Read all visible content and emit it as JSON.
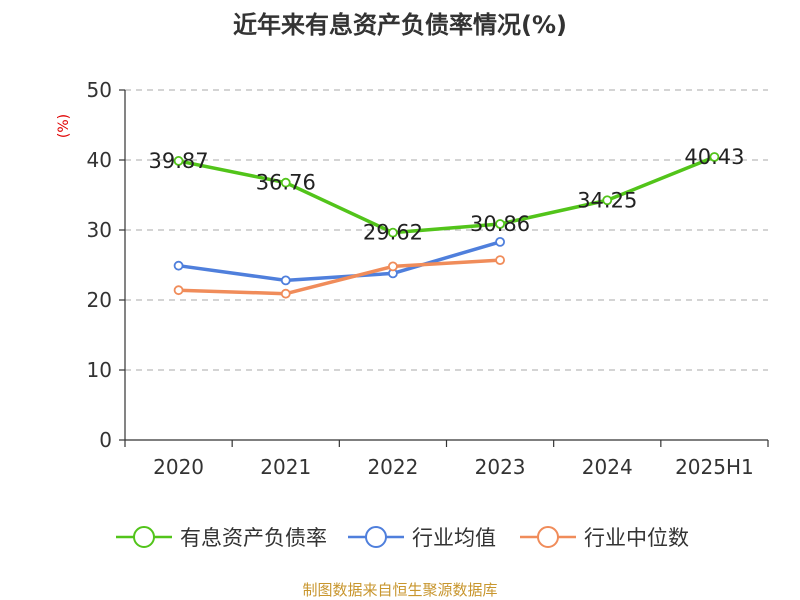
{
  "chart_data": {
    "type": "line",
    "title": "近年来有息资产负债率情况(%)",
    "ylabel": "(%)",
    "xlabel": "",
    "categories": [
      "2020",
      "2021",
      "2022",
      "2023",
      "2024",
      "2025H1"
    ],
    "ylim": [
      0,
      50
    ],
    "yticks": [
      0,
      10,
      20,
      30,
      40,
      50
    ],
    "grid": "horizontal-dashed",
    "legend_position": "bottom",
    "series": [
      {
        "name": "有息资产负债率",
        "color": "#52c41a",
        "values": [
          39.87,
          36.76,
          29.62,
          30.86,
          34.25,
          40.43
        ],
        "labels": [
          "39.87",
          "36.76",
          "29.62",
          "30.86",
          "34.25",
          "40.43"
        ]
      },
      {
        "name": "行业均值",
        "color": "#4f7fdc",
        "values": [
          24.9,
          22.8,
          23.8,
          28.3,
          null,
          null
        ]
      },
      {
        "name": "行业中位数",
        "color": "#f08c5a",
        "values": [
          21.4,
          20.9,
          24.8,
          25.7,
          null,
          null
        ]
      }
    ],
    "source": "制图数据来自恒生聚源数据库"
  }
}
